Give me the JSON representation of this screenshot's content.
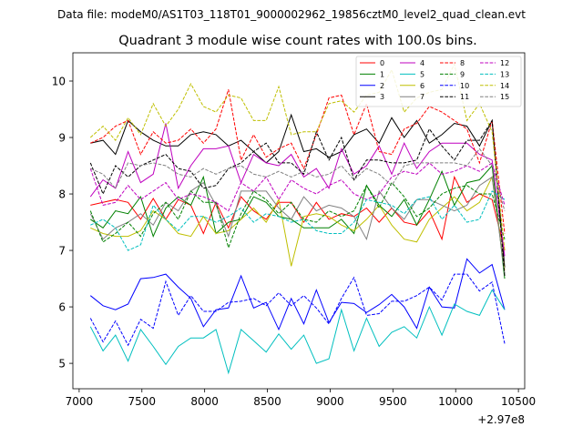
{
  "chart_data": {
    "type": "line",
    "suptitle": "Data file: modeM0/AS1T03_118T01_9000002962_19856cztM0_level2_quad_clean.evt",
    "title": "Quadrant 3 module wise count rates with 100.0s bins.",
    "xlabel": "",
    "ylabel": "",
    "x_offset_label": "+2.97e8",
    "xlim": [
      6950,
      10550
    ],
    "ylim": [
      4.55,
      10.5
    ],
    "xticks": [
      7000,
      7500,
      8000,
      8500,
      9000,
      9500,
      10000,
      10500
    ],
    "xtick_labels": [
      "7000",
      "7500",
      "8000",
      "8500",
      "9000",
      "9500",
      "10000",
      "10500"
    ],
    "yticks": [
      5,
      6,
      7,
      8,
      9,
      10
    ],
    "ytick_labels": [
      "5",
      "6",
      "7",
      "8",
      "9",
      "10"
    ],
    "legend_location": "top-right",
    "legend_columns": 4,
    "x": [
      7090,
      7190,
      7290,
      7390,
      7490,
      7590,
      7690,
      7790,
      7890,
      7990,
      8090,
      8190,
      8290,
      8390,
      8490,
      8590,
      8690,
      8790,
      8890,
      8990,
      9090,
      9190,
      9290,
      9390,
      9490,
      9590,
      9690,
      9790,
      9890,
      9990,
      10090,
      10190,
      10290,
      10390
    ],
    "series": [
      {
        "name": "0",
        "color": "#ff0000",
        "dash": "solid",
        "values": [
          7.8,
          7.85,
          7.9,
          7.85,
          7.55,
          7.92,
          7.55,
          7.9,
          7.8,
          7.3,
          7.85,
          7.4,
          7.95,
          7.7,
          7.55,
          7.85,
          7.85,
          7.5,
          7.85,
          7.55,
          7.65,
          7.6,
          7.75,
          7.5,
          7.75,
          7.5,
          7.45,
          7.7,
          7.2,
          8.3,
          7.85,
          8.0,
          7.9,
          7.0
        ]
      },
      {
        "name": "1",
        "color": "#008000",
        "dash": "solid",
        "values": [
          7.55,
          7.4,
          7.7,
          7.65,
          7.95,
          7.25,
          7.75,
          7.95,
          7.8,
          8.3,
          7.3,
          7.5,
          7.55,
          7.95,
          7.85,
          7.6,
          7.55,
          7.4,
          7.4,
          7.4,
          7.55,
          7.3,
          8.15,
          7.8,
          7.6,
          7.9,
          7.45,
          7.9,
          8.4,
          7.8,
          8.2,
          8.25,
          8.5,
          6.5
        ]
      },
      {
        "name": "2",
        "color": "#0000ff",
        "dash": "solid",
        "values": [
          6.2,
          6.02,
          5.95,
          6.05,
          6.5,
          6.52,
          6.58,
          6.35,
          6.15,
          5.65,
          5.95,
          5.98,
          6.55,
          5.98,
          6.08,
          5.6,
          6.15,
          5.7,
          6.3,
          5.72,
          6.08,
          6.06,
          5.9,
          6.04,
          6.22,
          6.0,
          5.62,
          6.35,
          6.0,
          5.98,
          6.85,
          6.6,
          6.75,
          5.95
        ]
      },
      {
        "name": "3",
        "color": "#000000",
        "dash": "solid",
        "values": [
          8.9,
          8.95,
          8.7,
          9.3,
          9.1,
          8.95,
          8.85,
          8.85,
          9.05,
          9.1,
          9.05,
          8.85,
          8.95,
          8.75,
          8.55,
          8.75,
          9.4,
          8.75,
          8.8,
          8.65,
          8.75,
          9.05,
          9.15,
          8.9,
          9.35,
          9.0,
          9.3,
          8.9,
          9.05,
          9.25,
          9.2,
          8.85,
          9.3,
          6.7
        ]
      },
      {
        "name": "4",
        "color": "#bf00bf",
        "dash": "solid",
        "values": [
          7.95,
          8.25,
          8.1,
          8.75,
          8.2,
          8.35,
          9.25,
          8.1,
          8.5,
          8.8,
          8.8,
          8.85,
          8.2,
          8.7,
          8.55,
          8.5,
          8.7,
          8.3,
          8.45,
          8.1,
          8.8,
          8.35,
          8.5,
          8.85,
          8.35,
          8.9,
          8.45,
          8.75,
          8.9,
          8.9,
          8.9,
          8.7,
          8.6,
          6.9
        ]
      },
      {
        "name": "5",
        "color": "#00bfbf",
        "dash": "solid",
        "values": [
          5.65,
          5.22,
          5.5,
          5.04,
          5.6,
          5.3,
          4.98,
          5.3,
          5.45,
          5.45,
          5.6,
          4.83,
          5.6,
          5.4,
          5.2,
          5.52,
          5.25,
          5.5,
          5.0,
          5.08,
          5.95,
          5.22,
          5.8,
          5.3,
          5.55,
          5.65,
          5.45,
          6.0,
          5.5,
          6.05,
          5.92,
          5.85,
          6.3,
          5.95
        ]
      },
      {
        "name": "6",
        "color": "#bfbf00",
        "dash": "solid",
        "values": [
          7.4,
          7.3,
          7.25,
          7.25,
          7.35,
          7.7,
          7.55,
          7.3,
          7.25,
          7.6,
          7.3,
          7.35,
          7.55,
          7.75,
          7.5,
          7.9,
          6.72,
          7.6,
          7.65,
          7.6,
          7.45,
          7.35,
          7.55,
          7.8,
          7.45,
          7.2,
          7.15,
          7.55,
          7.75,
          7.95,
          7.7,
          7.85,
          8.3,
          6.65
        ]
      },
      {
        "name": "7",
        "color": "#808080",
        "dash": "solid",
        "values": [
          7.65,
          7.2,
          7.4,
          7.5,
          7.65,
          7.45,
          7.85,
          7.7,
          8.05,
          8.2,
          7.8,
          7.25,
          8.05,
          8.05,
          8.05,
          7.75,
          7.55,
          7.95,
          7.7,
          7.8,
          7.75,
          7.6,
          7.2,
          8.05,
          7.75,
          7.55,
          7.9,
          7.9,
          7.8,
          7.7,
          7.8,
          8.15,
          8.3,
          6.6
        ]
      },
      {
        "name": "8",
        "color": "#ff0000",
        "dash": "dashed",
        "values": [
          8.9,
          9.0,
          9.2,
          9.3,
          8.7,
          9.1,
          8.9,
          8.95,
          9.15,
          8.9,
          9.15,
          9.85,
          8.6,
          9.05,
          8.65,
          8.8,
          8.9,
          8.45,
          9.05,
          9.7,
          9.75,
          9.05,
          9.6,
          8.75,
          8.7,
          9.15,
          9.25,
          9.55,
          9.45,
          9.3,
          9.15,
          8.55,
          9.3,
          7.3
        ]
      },
      {
        "name": "9",
        "color": "#008000",
        "dash": "dashed",
        "values": [
          7.7,
          7.15,
          7.3,
          7.5,
          7.25,
          7.65,
          7.85,
          7.55,
          8.05,
          7.85,
          7.85,
          7.05,
          7.65,
          8.05,
          7.9,
          7.65,
          7.85,
          7.55,
          7.5,
          7.7,
          7.6,
          7.7,
          8.15,
          7.75,
          8.2,
          7.95,
          7.6,
          7.75,
          8.0,
          8.1,
          8.15,
          8.0,
          8.0,
          7.2
        ]
      },
      {
        "name": "10",
        "color": "#0000ff",
        "dash": "dashed",
        "values": [
          5.8,
          5.38,
          5.75,
          5.32,
          5.78,
          5.62,
          6.45,
          5.85,
          6.2,
          5.92,
          5.92,
          6.08,
          6.1,
          6.15,
          6.02,
          6.25,
          6.02,
          6.2,
          5.98,
          5.7,
          6.15,
          6.52,
          5.85,
          5.88,
          6.1,
          6.1,
          6.2,
          6.35,
          6.12,
          6.58,
          6.58,
          6.28,
          6.44,
          5.35
        ]
      },
      {
        "name": "11",
        "color": "#000000",
        "dash": "dashed",
        "values": [
          8.55,
          8.0,
          8.5,
          8.3,
          8.5,
          8.6,
          8.7,
          8.45,
          8.4,
          8.1,
          8.15,
          8.45,
          8.55,
          8.75,
          8.9,
          8.55,
          8.55,
          8.35,
          9.1,
          8.6,
          9.0,
          8.25,
          8.6,
          8.6,
          8.55,
          8.55,
          8.6,
          9.15,
          8.85,
          8.6,
          8.95,
          8.95,
          9.3,
          6.55
        ]
      },
      {
        "name": "12",
        "color": "#bf00bf",
        "dash": "dashed",
        "values": [
          8.45,
          7.8,
          7.85,
          8.15,
          7.9,
          8.05,
          8.2,
          7.9,
          8.0,
          7.95,
          7.85,
          7.7,
          8.2,
          8.05,
          8.3,
          7.9,
          8.25,
          8.1,
          8.0,
          8.15,
          8.25,
          8.0,
          7.9,
          8.0,
          8.3,
          8.4,
          8.35,
          8.55,
          8.35,
          8.4,
          8.5,
          8.4,
          8.55,
          7.8
        ]
      },
      {
        "name": "13",
        "color": "#00bfbf",
        "dash": "dashed",
        "values": [
          7.45,
          7.55,
          7.4,
          7.0,
          7.1,
          7.8,
          7.55,
          7.35,
          7.6,
          7.6,
          7.5,
          7.6,
          7.75,
          7.5,
          7.65,
          7.6,
          7.5,
          7.55,
          7.35,
          7.3,
          7.3,
          7.5,
          7.9,
          7.85,
          7.8,
          7.65,
          7.9,
          7.95,
          7.55,
          7.8,
          7.5,
          7.55,
          8.05,
          7.9
        ]
      },
      {
        "name": "14",
        "color": "#bfbf00",
        "dash": "dashed",
        "values": [
          9.0,
          9.2,
          8.95,
          9.35,
          9.05,
          9.6,
          9.2,
          9.5,
          9.95,
          9.55,
          9.45,
          9.75,
          9.7,
          9.3,
          9.3,
          9.9,
          9.05,
          9.1,
          9.1,
          9.6,
          9.65,
          9.45,
          9.75,
          9.8,
          10.2,
          9.45,
          9.7,
          9.8,
          9.85,
          10.3,
          9.3,
          9.6,
          9.1,
          7.0
        ]
      },
      {
        "name": "15",
        "color": "#808080",
        "dash": "dashed",
        "values": [
          8.45,
          8.35,
          8.1,
          8.55,
          8.5,
          8.55,
          8.5,
          8.35,
          8.3,
          8.45,
          8.35,
          8.45,
          8.5,
          8.35,
          8.3,
          8.4,
          8.3,
          8.4,
          8.3,
          8.35,
          8.5,
          8.25,
          8.45,
          8.35,
          8.15,
          8.5,
          8.55,
          8.55,
          8.55,
          8.55,
          8.5,
          8.8,
          8.5,
          7.7
        ]
      }
    ]
  }
}
